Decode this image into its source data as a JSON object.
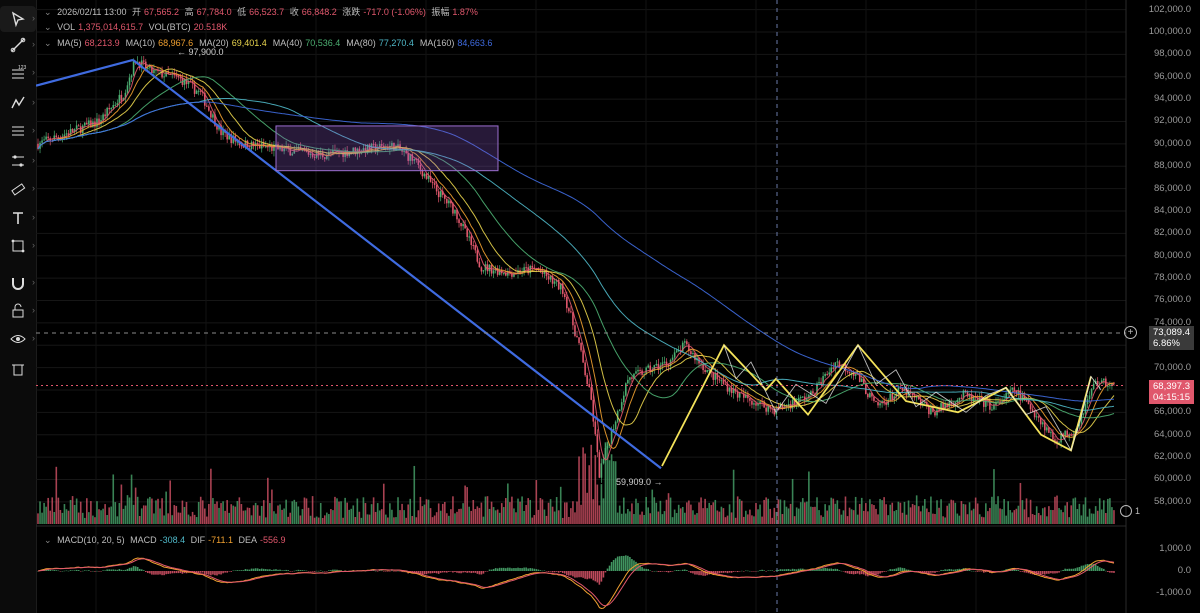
{
  "legend_main": {
    "datetime": "2026/02/11 13:00",
    "open_label": "开",
    "open": "67,565.2",
    "high_label": "高",
    "high": "67,784.0",
    "low_label": "低",
    "low": "66,523.7",
    "close_label": "收",
    "close": "66,848.2",
    "change_label": "涨跌",
    "change": "-717.0 (-1.06%)",
    "amp_label": "振幅",
    "amp": "1.87%"
  },
  "legend_vol": {
    "vol_label": "VOL",
    "vol": "1,375,014,615.7",
    "volbtc_label": "VOL(BTC)",
    "volbtc": "20.518K"
  },
  "legend_ma": [
    {
      "label": "MA(5)",
      "value": "68,213.9",
      "color": "#e0576c"
    },
    {
      "label": "MA(10)",
      "value": "68,967.6",
      "color": "#f0a030"
    },
    {
      "label": "MA(20)",
      "value": "69,401.4",
      "color": "#e8d44d"
    },
    {
      "label": "MA(40)",
      "value": "70,536.4",
      "color": "#4caf72"
    },
    {
      "label": "MA(80)",
      "value": "77,270.4",
      "color": "#4fb8c8"
    },
    {
      "label": "MA(160)",
      "value": "84,663.6",
      "color": "#3f6be0"
    }
  ],
  "legend_macd": {
    "label": "MACD(10, 20, 5)",
    "macd_label": "MACD",
    "macd": "-308.4",
    "dif_label": "DIF",
    "dif": "-711.1",
    "dea_label": "DEA",
    "dea": "-556.9"
  },
  "price_axis": [
    "102,000.0",
    "100,000.0",
    "98,000.0",
    "96,000.0",
    "94,000.0",
    "92,000.0",
    "90,000.0",
    "88,000.0",
    "86,000.0",
    "84,000.0",
    "82,000.0",
    "80,000.0",
    "78,000.0",
    "76,000.0",
    "74,000.0",
    "72,000.0",
    "70,000.0",
    "68,000.0",
    "66,000.0",
    "64,000.0",
    "62,000.0",
    "60,000.0",
    "58,000.0"
  ],
  "macd_axis": [
    "1,000.0",
    "0.0",
    "-1,000.0"
  ],
  "crosshair": {
    "price": "73,089.4",
    "pct": "6.86%"
  },
  "last_price": {
    "price": "68,397.3",
    "countdown": "04:15:15"
  },
  "annotations": {
    "high": "← 97,900.0",
    "low": "59,909.0 →"
  },
  "indicator_count": "1",
  "colors": {
    "up": "#e0576c",
    "down": "#4caf72",
    "last": "#e0576c"
  },
  "tools": [
    "cursor-icon",
    "trendline-icon",
    "fib-icon",
    "pattern-icon",
    "brush-icon",
    "measure-icon",
    "ruler-icon",
    "text-icon",
    "rectangle-icon",
    "magnet-icon",
    "lock-icon",
    "eye-icon",
    "trash-icon"
  ],
  "chart_data": {
    "type": "candlestick",
    "ylim": [
      57000,
      102500
    ],
    "key_prices": {
      "high": 97900,
      "low": 59909,
      "close": 66848.2,
      "last": 68397.3,
      "crosshair": 73089.4
    },
    "ma_periods": [
      5,
      10,
      20,
      40,
      80,
      160
    ]
  }
}
